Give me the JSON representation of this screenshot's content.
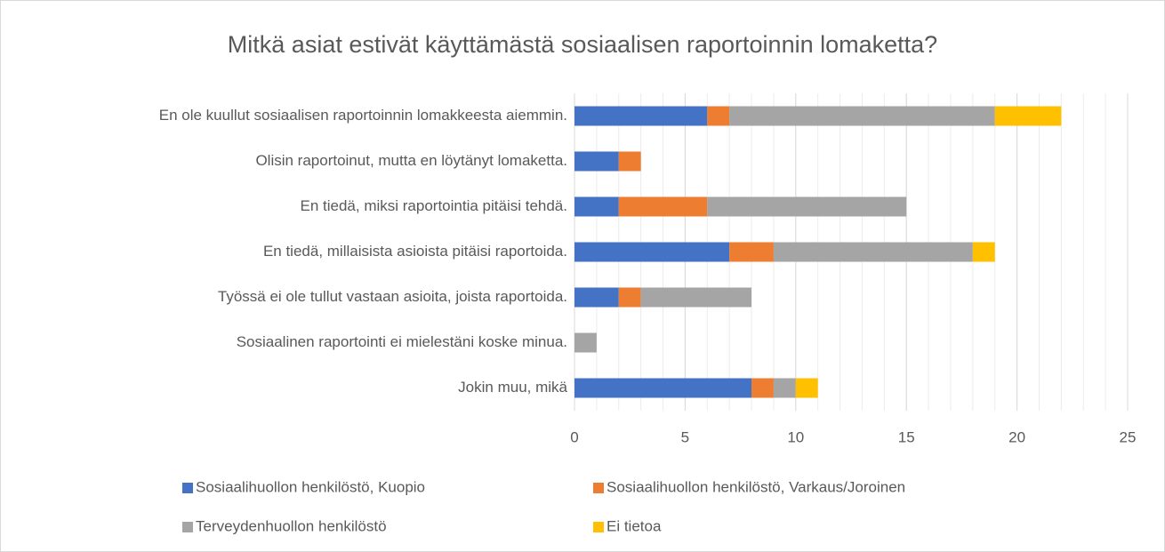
{
  "chart_data": {
    "type": "stacked_bar_horizontal",
    "title": "Mitkä asiat estivät käyttämästä sosiaalisen raportoinnin lomaketta?",
    "categories": [
      "En ole kuullut sosiaalisen raportoinnin lomakkeesta aiemmin.",
      "Olisin raportoinut, mutta en löytänyt lomaketta.",
      "En tiedä, miksi raportointia pitäisi tehdä.",
      "En tiedä, millaisista asioista pitäisi raportoida.",
      "Työssä ei ole tullut vastaan asioita, joista raportoida.",
      "Sosiaalinen raportointi ei mielestäni koske minua.",
      "Jokin muu, mikä"
    ],
    "series": [
      {
        "name": "Sosiaalihuollon henkilöstö, Kuopio",
        "color": "#4472c4",
        "values": [
          6,
          2,
          2,
          7,
          2,
          0,
          8
        ]
      },
      {
        "name": "Sosiaalihuollon henkilöstö, Varkaus/Joroinen",
        "color": "#ed7d31",
        "values": [
          1,
          1,
          4,
          2,
          1,
          0,
          1
        ]
      },
      {
        "name": "Terveydenhuollon henkilöstö",
        "color": "#a5a5a5",
        "values": [
          12,
          0,
          9,
          9,
          5,
          1,
          1
        ]
      },
      {
        "name": "Ei tietoa",
        "color": "#ffc000",
        "values": [
          3,
          0,
          0,
          1,
          0,
          0,
          1
        ]
      }
    ],
    "xlim": [
      0,
      25
    ],
    "xticks": [
      0,
      5,
      10,
      15,
      20,
      25
    ],
    "minor_xticks": [
      0,
      1,
      2,
      3,
      4,
      5,
      6,
      7,
      8,
      9,
      10,
      11,
      12,
      13,
      14,
      15,
      16,
      17,
      18,
      19,
      20,
      21,
      22,
      23,
      24,
      25
    ],
    "grid": true,
    "legend": "bottom"
  }
}
